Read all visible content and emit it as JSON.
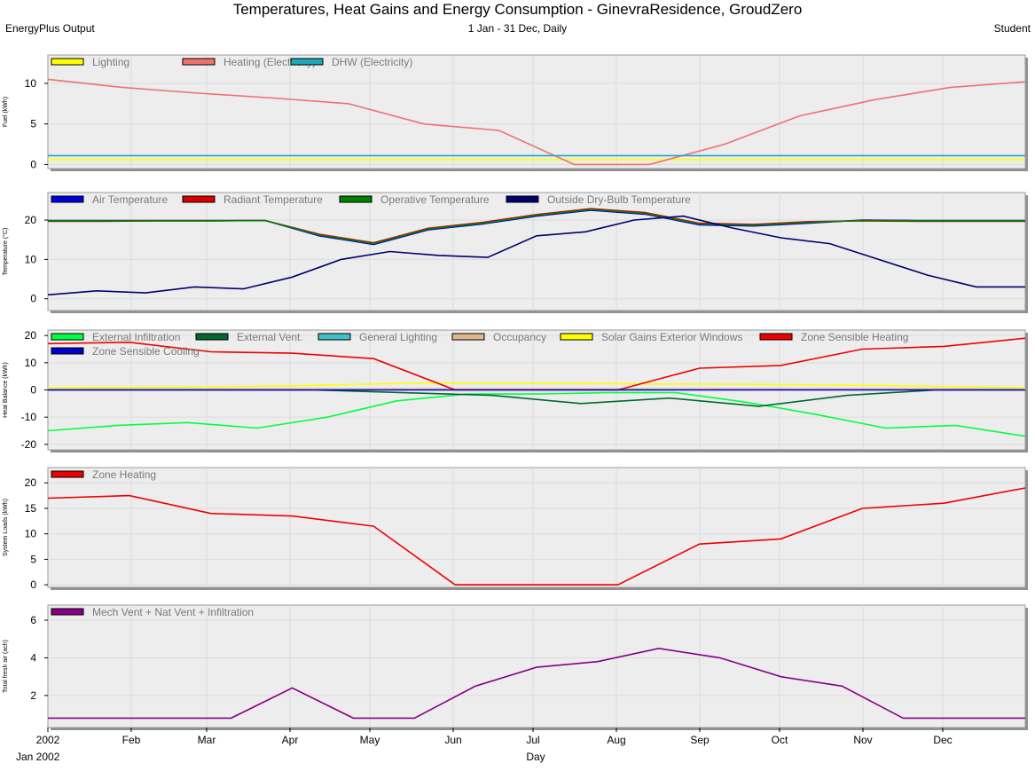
{
  "header": {
    "title": "Temperatures, Heat Gains and Energy Consumption - GinevraResidence, GroudZero",
    "left": "EnergyPlus Output",
    "center": "1 Jan - 31 Dec, Daily",
    "right": "Student"
  },
  "x_axis": {
    "tick_labels": [
      "2002",
      "Feb",
      "Mar",
      "Apr",
      "May",
      "Jun",
      "Jul",
      "Aug",
      "Sep",
      "Oct",
      "Nov",
      "Dec"
    ],
    "start_label": "Jan  2002",
    "label": "Day"
  },
  "chart_data": [
    {
      "type": "line",
      "ylabel": "Fuel (kWh)",
      "ylim": [
        -0.5,
        13.5
      ],
      "yticks": [
        0,
        5,
        10
      ],
      "series": [
        {
          "name": "Lighting",
          "color": "#ffff00",
          "values": [
            0.6,
            0.6
          ]
        },
        {
          "name": "Heating (Electricity)",
          "color": "#f07070",
          "values": [
            10.5,
            9.5,
            8.8,
            8.2,
            7.5,
            5.0,
            4.2,
            0.0,
            0.0,
            2.5,
            6.0,
            8.0,
            9.5,
            10.2
          ]
        },
        {
          "name": "DHW (Electricity)",
          "color": "#1fa8b8",
          "values": [
            1.1,
            1.1
          ]
        }
      ]
    },
    {
      "type": "line",
      "ylabel": "Temperature (°C)",
      "ylim": [
        -3,
        27
      ],
      "yticks": [
        0,
        10,
        20
      ],
      "series": [
        {
          "name": "Air Temperature",
          "color": "#0000dd",
          "values": [
            19.9,
            19.9,
            19.9,
            19.9,
            19.9,
            16.0,
            13.8,
            17.5,
            19.0,
            21.0,
            22.5,
            21.5,
            18.8,
            18.5,
            19.2,
            20.0,
            19.9,
            19.9,
            19.9
          ]
        },
        {
          "name": "Radiant Temperature",
          "color": "#dd0000",
          "values": [
            19.7,
            19.7,
            19.8,
            19.8,
            19.9,
            16.4,
            14.2,
            17.9,
            19.4,
            21.4,
            22.9,
            21.9,
            19.2,
            18.9,
            19.6,
            19.8,
            19.7,
            19.7,
            19.7
          ]
        },
        {
          "name": "Operative Temperature",
          "color": "#008000",
          "values": [
            19.8,
            19.8,
            19.8,
            19.8,
            19.9,
            16.2,
            14.0,
            17.7,
            19.2,
            21.2,
            22.7,
            21.7,
            19.0,
            18.7,
            19.4,
            19.9,
            19.8,
            19.8,
            19.8
          ]
        },
        {
          "name": "Outside Dry-Bulb Temperature",
          "color": "#00006e",
          "values": [
            1.0,
            2.0,
            1.5,
            3.0,
            2.5,
            5.5,
            10.0,
            12.0,
            11.0,
            10.5,
            16.0,
            17.0,
            20.0,
            21.0,
            18.0,
            15.5,
            14.0,
            10.0,
            6.0,
            3.0,
            3.0
          ]
        }
      ]
    },
    {
      "type": "line",
      "ylabel": "Heat Balance (kWh)",
      "ylim": [
        -22,
        22
      ],
      "yticks": [
        -20,
        -10,
        0,
        10,
        20
      ],
      "series": [
        {
          "name": "External Infiltration",
          "color": "#00ff40",
          "values": [
            -15,
            -13,
            -12,
            -14,
            -10,
            -4,
            -1.5,
            -1.5,
            -1,
            -1,
            -4.5,
            -9,
            -14,
            -13,
            -17
          ]
        },
        {
          "name": "External Vent.",
          "color": "#006830",
          "values": [
            0,
            0,
            0,
            0,
            -1,
            -2,
            -5,
            -3,
            -6,
            -2,
            0,
            0
          ]
        },
        {
          "name": "General Lighting",
          "color": "#40c0c8",
          "values": [
            0.2,
            0.2
          ]
        },
        {
          "name": "Occupancy",
          "color": "#e0b890",
          "values": [
            0.4,
            0.4
          ]
        },
        {
          "name": "Solar Gains Exterior Windows",
          "color": "#ffff00",
          "values": [
            0.8,
            1.0,
            1.5,
            2.5,
            2.5,
            2.2,
            2.0,
            1.5,
            0.8
          ]
        },
        {
          "name": "Zone Sensible Heating",
          "color": "#ee0000",
          "values": [
            17,
            17.5,
            14,
            13.5,
            11.5,
            0,
            0,
            0,
            8,
            9,
            15,
            16,
            19
          ]
        },
        {
          "name": "Zone Sensible Cooling",
          "color": "#0000cc",
          "values": [
            0,
            0
          ]
        }
      ]
    },
    {
      "type": "line",
      "ylabel": "System Loads (kWh)",
      "ylim": [
        -0.5,
        23
      ],
      "yticks": [
        0,
        5,
        10,
        15,
        20
      ],
      "series": [
        {
          "name": "Zone Heating",
          "color": "#ee0000",
          "values": [
            17,
            17.5,
            14,
            13.5,
            11.5,
            0,
            0,
            0,
            8,
            9,
            15,
            16,
            19
          ]
        }
      ]
    },
    {
      "type": "line",
      "ylabel": "Total fresh air (ach)",
      "ylim": [
        0.3,
        6.8
      ],
      "yticks": [
        2,
        4,
        6
      ],
      "series": [
        {
          "name": "Mech Vent + Nat Vent + Infiltration",
          "color": "#880088",
          "values": [
            0.8,
            0.8,
            0.8,
            0.8,
            2.4,
            0.8,
            0.8,
            2.5,
            3.5,
            3.8,
            4.5,
            4.0,
            3.0,
            2.5,
            0.8,
            0.8,
            0.8
          ]
        }
      ]
    }
  ]
}
